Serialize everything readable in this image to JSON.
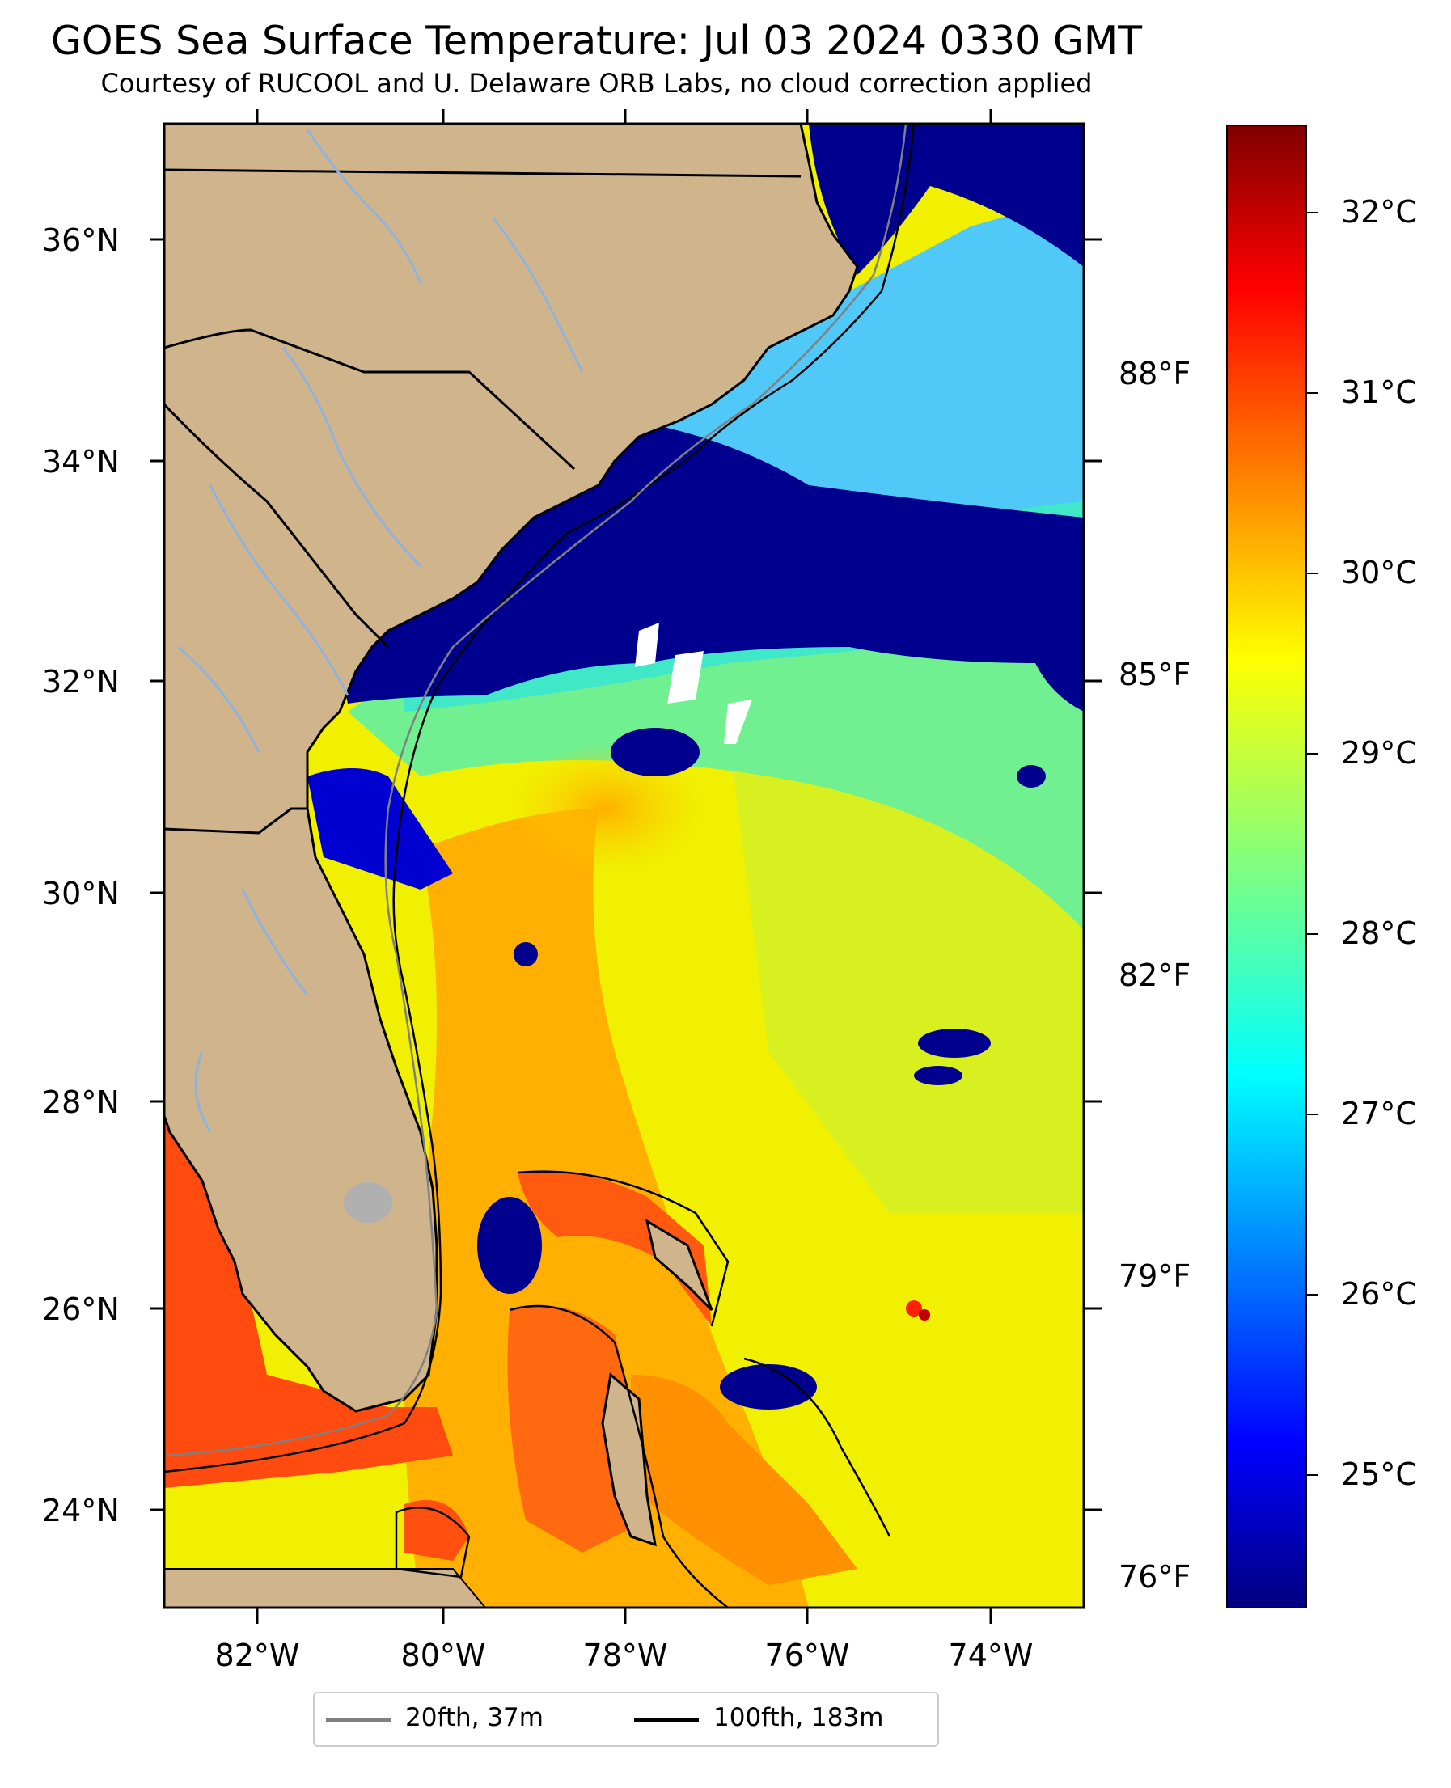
{
  "title": "GOES Sea Surface Temperature: Jul 03 2024 0330 GMT",
  "subtitle": "Courtesy of RUCOOL and U. Delaware ORB Labs, no cloud correction applied",
  "latitude_labels": [
    "36°N",
    "34°N",
    "32°N",
    "30°N",
    "28°N",
    "26°N",
    "24°N"
  ],
  "longitude_labels": [
    "82°W",
    "80°W",
    "78°W",
    "76°W",
    "74°W"
  ],
  "fahrenheit_labels": [
    "88°F",
    "85°F",
    "82°F",
    "79°F",
    "76°F"
  ],
  "colorbar": {
    "labels": [
      "32°C",
      "31°C",
      "30°C",
      "29°C",
      "28°C",
      "27°C",
      "26°C",
      "25°C"
    ],
    "colormap": "jet",
    "colors": [
      "#000080",
      "#0000ff",
      "#0080ff",
      "#00ffff",
      "#80ff80",
      "#ffff00",
      "#ff8000",
      "#ff0000",
      "#800000"
    ]
  },
  "legend": {
    "items": [
      {
        "label": "20fth, 37m",
        "color": "#808080"
      },
      {
        "label": "100fth, 183m",
        "color": "#000000"
      }
    ]
  },
  "colors": {
    "land": "#cfb48c",
    "cloud": "#00008f",
    "river": "#8fb3dc",
    "lake": "#b0b0b0"
  }
}
